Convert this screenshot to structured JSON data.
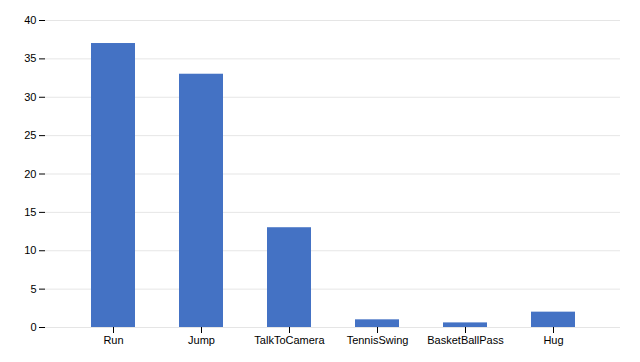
{
  "chart_data": {
    "type": "bar",
    "categories": [
      "Run",
      "Jump",
      "TalkToCamera",
      "TennisSwing",
      "BasketBallPass",
      "Hug"
    ],
    "values": [
      37,
      33,
      13,
      1,
      0.6,
      2
    ],
    "color": "#4472C4",
    "ylim": [
      0,
      40
    ],
    "yticks": [
      0,
      5,
      10,
      15,
      20,
      25,
      30,
      35,
      40
    ],
    "grid": true
  }
}
